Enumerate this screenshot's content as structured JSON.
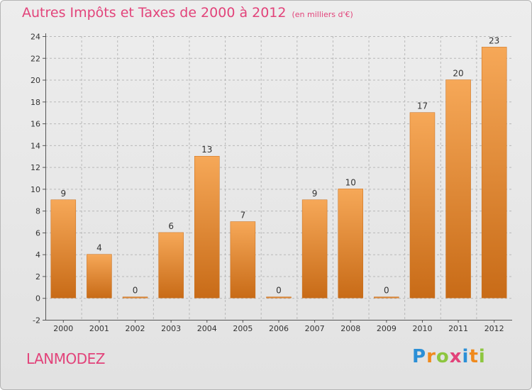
{
  "chart_data": {
    "type": "bar",
    "title": "Autres Impôts et Taxes de 2000 à 2012",
    "subtitle": "(en milliers d'€)",
    "categories": [
      "2000",
      "2001",
      "2002",
      "2003",
      "2004",
      "2005",
      "2006",
      "2007",
      "2008",
      "2009",
      "2010",
      "2011",
      "2012"
    ],
    "values": [
      9,
      4,
      0,
      6,
      13,
      7,
      0,
      9,
      10,
      0,
      17,
      20,
      23
    ],
    "value_labels": [
      "9",
      "4",
      "0",
      "6",
      "13",
      "7",
      "0",
      "9",
      "10",
      "0",
      "17",
      "20",
      "23"
    ],
    "ylim": [
      -2,
      24
    ],
    "yticks": [
      -2,
      0,
      2,
      4,
      6,
      8,
      10,
      12,
      14,
      16,
      18,
      20,
      22,
      24
    ],
    "grid": true,
    "legend": "none",
    "bar_color": "#f28a2e",
    "bar_color_light": "#f6a858",
    "bar_color_dark": "#c86b17"
  },
  "footer": {
    "location": "LANMODEZ",
    "brand_letters": [
      {
        "ch": "P",
        "color": "#2b8fd6"
      },
      {
        "ch": "r",
        "color": "#f08a1d"
      },
      {
        "ch": "o",
        "color": "#8dc63f"
      },
      {
        "ch": "x",
        "color": "#e2437a"
      },
      {
        "ch": "i",
        "color": "#2b8fd6"
      },
      {
        "ch": "t",
        "color": "#f08a1d"
      },
      {
        "ch": "i",
        "color": "#8dc63f"
      }
    ]
  },
  "colors": {
    "title": "#e2437a",
    "grid": "#b8b8b8"
  }
}
